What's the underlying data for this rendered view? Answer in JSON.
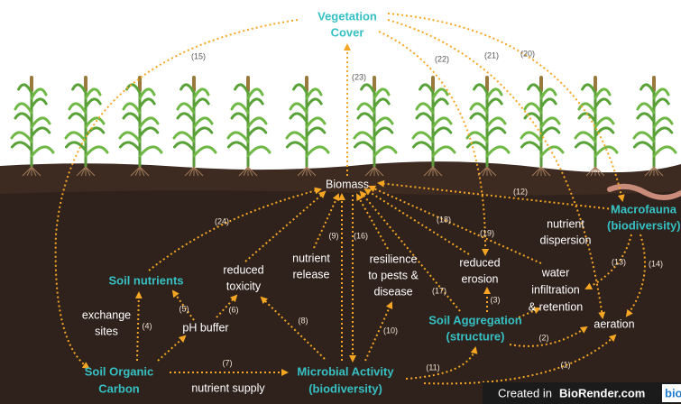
{
  "nodes": [
    {
      "lines": [
        "Vegetation",
        "Cover"
      ]
    },
    {
      "lines": [
        "Biomass"
      ]
    },
    {
      "lines": [
        "Macrofauna",
        "(biodiversity)"
      ]
    },
    {
      "lines": [
        "Soil nutrients"
      ]
    },
    {
      "lines": [
        "Soil Organic",
        "Carbon"
      ]
    },
    {
      "lines": [
        "Microbial Activity",
        "(biodiversity)"
      ]
    },
    {
      "lines": [
        "Soil Aggregation",
        "(structure)"
      ]
    },
    {
      "lines": [
        "reduced",
        "toxicity"
      ]
    },
    {
      "lines": [
        "nutrient",
        "release"
      ]
    },
    {
      "lines": [
        "resilience",
        "to pests &",
        "disease"
      ]
    },
    {
      "lines": [
        "reduced",
        "erosion"
      ]
    },
    {
      "lines": [
        "water",
        "infiltration",
        "& retention"
      ]
    },
    {
      "lines": [
        "nutrient",
        "dispersion"
      ]
    },
    {
      "lines": [
        "aeration"
      ]
    },
    {
      "lines": [
        "exchange",
        "sites"
      ]
    },
    {
      "lines": [
        "pH buffer"
      ]
    },
    {
      "lines": [
        "nutrient supply"
      ]
    }
  ],
  "edge_labels": [
    "(15)",
    "(23)",
    "(22)",
    "(21)",
    "(20)",
    "(24)",
    "(9)",
    "(16)",
    "(12)",
    "(18)",
    "(19)",
    "(13)",
    "(14)",
    "(5)",
    "(6)",
    "(4)",
    "(8)",
    "(10)",
    "(17)",
    "(3)",
    "(2)",
    "(1)",
    "(11)",
    "(7)"
  ],
  "footer": {
    "prefix": "Created in",
    "brand": "BioRender.com",
    "logo": "bio"
  }
}
